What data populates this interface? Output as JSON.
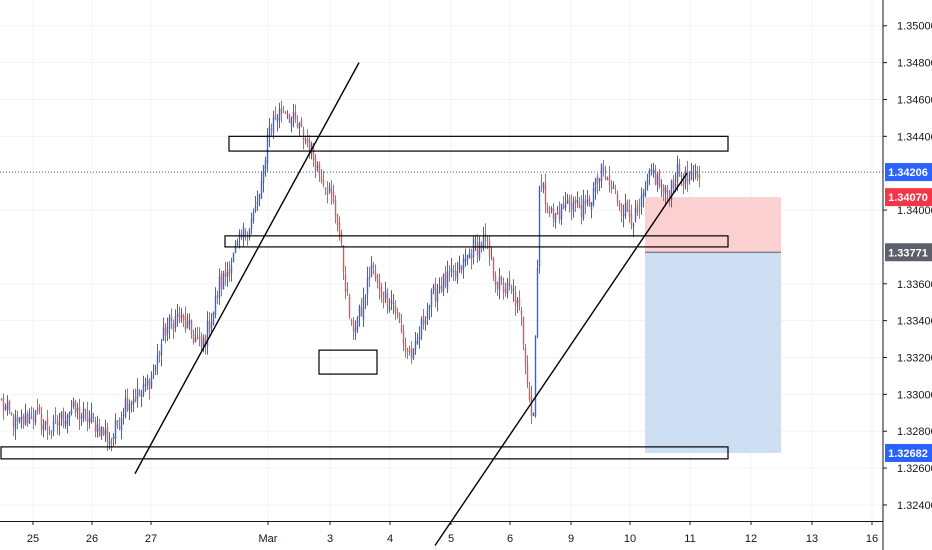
{
  "chart_data": {
    "type": "candlestick",
    "instrument_note": "",
    "x_tick_labels": [
      "25",
      "26",
      "27",
      "Mar",
      "3",
      "4",
      "5",
      "6",
      "9",
      "10",
      "11",
      "12",
      "13",
      "16"
    ],
    "y_tick_labels": [
      "1.35000",
      "1.34800",
      "1.34600",
      "1.34400",
      "1.34000",
      "1.33600",
      "1.33400",
      "1.33200",
      "1.33000",
      "1.32800",
      "1.32600",
      "1.32400"
    ],
    "y_tick_values": [
      1.35,
      1.348,
      1.346,
      1.344,
      1.34,
      1.336,
      1.334,
      1.332,
      1.33,
      1.328,
      1.326,
      1.324
    ],
    "ylim": [
      1.3234,
      1.3508
    ],
    "price_badges": [
      {
        "label": "1.34206",
        "value": 1.34206,
        "color": "#2962ff",
        "kind": "last-price"
      },
      {
        "label": "1.34070",
        "value": 1.3407,
        "color": "#f23645",
        "kind": "take-profit-or-entry"
      },
      {
        "label": "1.33771",
        "value": 1.33771,
        "color": "#5d606b",
        "kind": "entry"
      },
      {
        "label": "1.32682",
        "value": 1.32682,
        "color": "#2962ff",
        "kind": "target"
      }
    ],
    "colors": {
      "up": "#2962ff",
      "down": "#ef5350",
      "grid": "#f0f3fa",
      "axis": "#131722",
      "stop_zone": "#fbd0d0",
      "target_zone": "#cfdff3"
    },
    "candle_segments": [
      {
        "n": 70,
        "start": 1.3295,
        "path": [
          [
            0,
            1.3295
          ],
          [
            8,
            1.3283
          ],
          [
            15,
            1.329
          ],
          [
            25,
            1.328
          ],
          [
            34,
            1.3292
          ],
          [
            45,
            1.3286
          ],
          [
            55,
            1.3275
          ],
          [
            62,
            1.3296
          ],
          [
            69,
            1.33
          ]
        ]
      },
      {
        "n": 40,
        "start": 1.33,
        "path": [
          [
            0,
            1.33
          ],
          [
            6,
            1.3312
          ],
          [
            12,
            1.3335
          ],
          [
            18,
            1.3342
          ],
          [
            24,
            1.3335
          ],
          [
            30,
            1.3325
          ],
          [
            36,
            1.3345
          ],
          [
            39,
            1.336
          ]
        ]
      },
      {
        "n": 24,
        "start": 1.336,
        "path": [
          [
            0,
            1.336
          ],
          [
            5,
            1.3372
          ],
          [
            10,
            1.3385
          ],
          [
            14,
            1.3392
          ],
          [
            18,
            1.3403
          ],
          [
            22,
            1.3425
          ],
          [
            23,
            1.3445
          ]
        ]
      },
      {
        "n": 26,
        "start": 1.3445,
        "path": [
          [
            0,
            1.3445
          ],
          [
            4,
            1.3452
          ],
          [
            8,
            1.3455
          ],
          [
            12,
            1.3448
          ],
          [
            16,
            1.3442
          ],
          [
            20,
            1.3435
          ],
          [
            25,
            1.342
          ]
        ]
      },
      {
        "n": 30,
        "start": 1.342,
        "path": [
          [
            0,
            1.342
          ],
          [
            4,
            1.341
          ],
          [
            8,
            1.3395
          ],
          [
            12,
            1.336
          ],
          [
            15,
            1.3335
          ],
          [
            20,
            1.3345
          ],
          [
            25,
            1.337
          ],
          [
            29,
            1.3355
          ]
        ]
      },
      {
        "n": 30,
        "start": 1.3355,
        "path": [
          [
            0,
            1.3355
          ],
          [
            6,
            1.335
          ],
          [
            12,
            1.3325
          ],
          [
            16,
            1.332
          ],
          [
            22,
            1.3345
          ],
          [
            29,
            1.336
          ]
        ]
      },
      {
        "n": 36,
        "start": 1.336,
        "path": [
          [
            0,
            1.336
          ],
          [
            8,
            1.3365
          ],
          [
            16,
            1.338
          ],
          [
            22,
            1.3382
          ],
          [
            28,
            1.336
          ],
          [
            35,
            1.3355
          ]
        ]
      },
      {
        "n": 10,
        "start": 1.3355,
        "path": [
          [
            0,
            1.3355
          ],
          [
            4,
            1.334
          ],
          [
            9,
            1.329
          ]
        ]
      },
      {
        "n": 60,
        "start": 1.329,
        "path": [
          [
            0,
            1.329
          ],
          [
            3,
            1.3415
          ],
          [
            10,
            1.3395
          ],
          [
            18,
            1.3405
          ],
          [
            26,
            1.34
          ],
          [
            34,
            1.342
          ],
          [
            40,
            1.341
          ],
          [
            46,
            1.34
          ],
          [
            52,
            1.3395
          ],
          [
            56,
            1.341
          ],
          [
            59,
            1.342
          ]
        ]
      },
      {
        "n": 24,
        "start": 1.342,
        "path": [
          [
            0,
            1.342
          ],
          [
            6,
            1.3408
          ],
          [
            12,
            1.342
          ],
          [
            18,
            1.3415
          ],
          [
            23,
            1.342
          ]
        ]
      }
    ],
    "drawings": [
      {
        "kind": "trendline",
        "from": {
          "i": 67,
          "p": 1.3257
        },
        "to": {
          "i": 179,
          "p": 1.348
        }
      },
      {
        "kind": "trendline",
        "from": {
          "i": 217,
          "p": 1.3218
        },
        "to": {
          "i": 343,
          "p": 1.342
        }
      },
      {
        "kind": "zone-box",
        "from_i": 114,
        "to_i": 400,
        "top": 1.344,
        "bottom": 1.3432
      },
      {
        "kind": "zone-box",
        "from_i": 112,
        "to_i": 400,
        "top": 1.3386,
        "bottom": 1.338
      },
      {
        "kind": "zone-box",
        "from_i": 159,
        "to_i": 188,
        "top": 1.3324,
        "bottom": 1.3311
      },
      {
        "kind": "zone-box",
        "from_i": 0,
        "to_i": 400,
        "top": 1.32715,
        "bottom": 1.3265
      }
    ],
    "position_tool": {
      "from_i": 322,
      "to_i": 390,
      "entry": 1.33771,
      "stop": 1.3407,
      "target": 1.32682
    }
  }
}
